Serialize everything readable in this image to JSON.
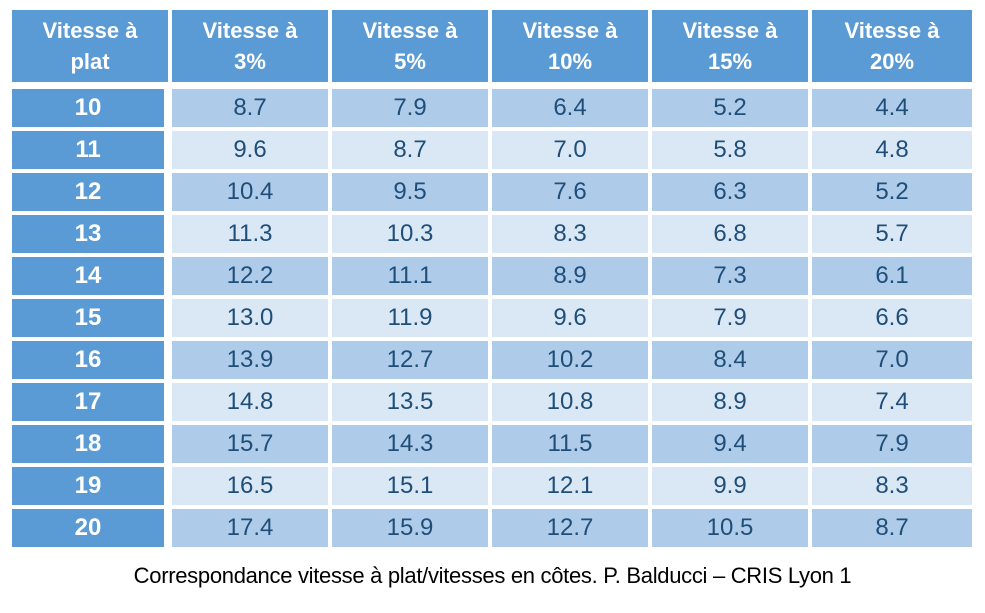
{
  "colors": {
    "header_blue": "#5b9bd5",
    "band_dark": "#aecbe9",
    "band_light": "#dae8f5",
    "value_text": "#1f4e79",
    "header_text": "#ffffff",
    "caption_text": "#000000",
    "background": "#ffffff"
  },
  "table": {
    "corner_header": {
      "line1": "Vitesse à",
      "line2": "plat"
    },
    "col_headers": [
      {
        "line1": "Vitesse à",
        "line2": "3%"
      },
      {
        "line1": "Vitesse à",
        "line2": "5%"
      },
      {
        "line1": "Vitesse à",
        "line2": "10%"
      },
      {
        "line1": "Vitesse à",
        "line2": "15%"
      },
      {
        "line1": "Vitesse à",
        "line2": "20%"
      }
    ],
    "rows": [
      {
        "speed": "10",
        "values": [
          "8.7",
          "7.9",
          "6.4",
          "5.2",
          "4.4"
        ]
      },
      {
        "speed": "11",
        "values": [
          "9.6",
          "8.7",
          "7.0",
          "5.8",
          "4.8"
        ]
      },
      {
        "speed": "12",
        "values": [
          "10.4",
          "9.5",
          "7.6",
          "6.3",
          "5.2"
        ]
      },
      {
        "speed": "13",
        "values": [
          "11.3",
          "10.3",
          "8.3",
          "6.8",
          "5.7"
        ]
      },
      {
        "speed": "14",
        "values": [
          "12.2",
          "11.1",
          "8.9",
          "7.3",
          "6.1"
        ]
      },
      {
        "speed": "15",
        "values": [
          "13.0",
          "11.9",
          "9.6",
          "7.9",
          "6.6"
        ]
      },
      {
        "speed": "16",
        "values": [
          "13.9",
          "12.7",
          "10.2",
          "8.4",
          "7.0"
        ]
      },
      {
        "speed": "17",
        "values": [
          "14.8",
          "13.5",
          "10.8",
          "8.9",
          "7.4"
        ]
      },
      {
        "speed": "18",
        "values": [
          "15.7",
          "14.3",
          "11.5",
          "9.4",
          "7.9"
        ]
      },
      {
        "speed": "19",
        "values": [
          "16.5",
          "15.1",
          "12.1",
          "9.9",
          "8.3"
        ]
      },
      {
        "speed": "20",
        "values": [
          "17.4",
          "15.9",
          "12.7",
          "10.5",
          "8.7"
        ]
      }
    ],
    "caption": "Correspondance  vitesse à plat/vitesses en côtes. P. Balducci – CRIS Lyon 1"
  },
  "chart_data": {
    "type": "table",
    "title": "Correspondance  vitesse à plat/vitesses en côtes. P. Balducci – CRIS Lyon 1",
    "columns": [
      "Vitesse à plat",
      "Vitesse à 3%",
      "Vitesse à 5%",
      "Vitesse à 10%",
      "Vitesse à 15%",
      "Vitesse à 20%"
    ],
    "rows": [
      [
        10,
        8.7,
        7.9,
        6.4,
        5.2,
        4.4
      ],
      [
        11,
        9.6,
        8.7,
        7.0,
        5.8,
        4.8
      ],
      [
        12,
        10.4,
        9.5,
        7.6,
        6.3,
        5.2
      ],
      [
        13,
        11.3,
        10.3,
        8.3,
        6.8,
        5.7
      ],
      [
        14,
        12.2,
        11.1,
        8.9,
        7.3,
        6.1
      ],
      [
        15,
        13.0,
        11.9,
        9.6,
        7.9,
        6.6
      ],
      [
        16,
        13.9,
        12.7,
        10.2,
        8.4,
        7.0
      ],
      [
        17,
        14.8,
        13.5,
        10.8,
        8.9,
        7.4
      ],
      [
        18,
        15.7,
        14.3,
        11.5,
        9.4,
        7.9
      ],
      [
        19,
        16.5,
        15.1,
        12.1,
        9.9,
        8.3
      ],
      [
        20,
        17.4,
        15.9,
        12.7,
        10.5,
        8.7
      ]
    ]
  }
}
